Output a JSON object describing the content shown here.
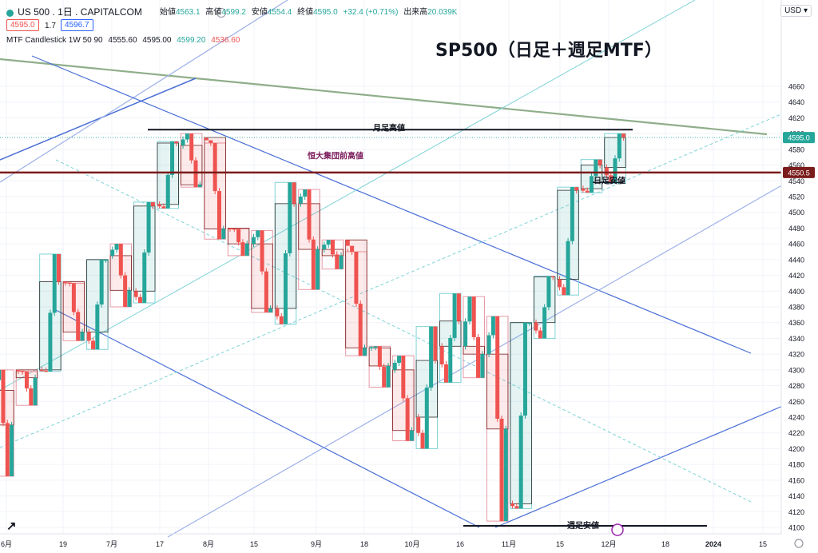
{
  "header": {
    "symbol": "US 500 . 1日 . CAPITALCOM",
    "open_label": "始値",
    "open": "4563.1",
    "high_label": "高値",
    "high": "4599.2",
    "low_label": "安値",
    "low": "4554.4",
    "close_label": "終値",
    "close": "4595.0",
    "change": "+32.4 (+0.71%)",
    "volume_label": "出来高",
    "volume": "20.039K",
    "price_box": "4595.0",
    "spread": "1.7",
    "ask_box": "4596.7"
  },
  "indicator": {
    "name": "MTF Candlestick 1W 50 90",
    "v1": "4555.60",
    "v2": "4595.00",
    "v3": "4599.20",
    "v4": "4536.60"
  },
  "currency": "USD",
  "colors": {
    "up": "#26a69a",
    "down": "#ef5350",
    "trend": "#4a6fd6",
    "resistance": "#7b1c1c"
  },
  "chart_data": {
    "type": "candlestick",
    "title": "SP500（日足＋週足MTF）",
    "ylim": [
      4090,
      4680
    ],
    "y_ticks": [
      4100,
      4120,
      4140,
      4160,
      4180,
      4200,
      4220,
      4240,
      4260,
      4280,
      4300,
      4320,
      4340,
      4360,
      4380,
      4400,
      4420,
      4440,
      4460,
      4480,
      4500,
      4520,
      4540,
      4560,
      4580,
      4600,
      4620,
      4640,
      4660
    ],
    "x_ticks": [
      "6月",
      "19",
      "7月",
      "17",
      "8月",
      "15",
      "9月",
      "18",
      "10月",
      "16",
      "11月",
      "15",
      "12月",
      "18",
      "2024",
      "15"
    ],
    "last_price": 4595.0,
    "resistance_price": 4550.5,
    "annotations": [
      {
        "text": "月足高値",
        "price": 4608
      },
      {
        "text": "恒大集団前高値",
        "price": 4572
      },
      {
        "text": "日足安値",
        "price": 4541
      },
      {
        "text": "週足安値",
        "price": 4103
      }
    ],
    "weekly": [
      {
        "o": 4274,
        "h": 4300,
        "l": 4165,
        "c": 4230
      },
      {
        "o": 4300,
        "h": 4298,
        "l": 4255,
        "c": 4290
      },
      {
        "o": 4300,
        "h": 4447,
        "l": 4298,
        "c": 4412
      },
      {
        "o": 4412,
        "h": 4410,
        "l": 4337,
        "c": 4348
      },
      {
        "o": 4348,
        "h": 4440,
        "l": 4326,
        "c": 4440
      },
      {
        "o": 4445,
        "h": 4460,
        "l": 4380,
        "c": 4401
      },
      {
        "o": 4400,
        "h": 4513,
        "l": 4385,
        "c": 4508
      },
      {
        "o": 4510,
        "h": 4590,
        "l": 4505,
        "c": 4588
      },
      {
        "o": 4585,
        "h": 4600,
        "l": 4532,
        "c": 4535
      },
      {
        "o": 4595,
        "h": 4588,
        "l": 4466,
        "c": 4479
      },
      {
        "o": 4480,
        "h": 4479,
        "l": 4445,
        "c": 4460
      },
      {
        "o": 4460,
        "h": 4477,
        "l": 4373,
        "c": 4378
      },
      {
        "o": 4378,
        "h": 4538,
        "l": 4358,
        "c": 4511
      },
      {
        "o": 4511,
        "h": 4529,
        "l": 4402,
        "c": 4453
      },
      {
        "o": 4453,
        "h": 4465,
        "l": 4428,
        "c": 4445
      },
      {
        "o": 4465,
        "h": 4450,
        "l": 4318,
        "c": 4328
      },
      {
        "o": 4328,
        "h": 4330,
        "l": 4278,
        "c": 4305
      },
      {
        "o": 4300,
        "h": 4318,
        "l": 4210,
        "c": 4223
      },
      {
        "o": 4240,
        "h": 4355,
        "l": 4200,
        "c": 4312
      },
      {
        "o": 4330,
        "h": 4397,
        "l": 4284,
        "c": 4362
      },
      {
        "o": 4330,
        "h": 4393,
        "l": 4290,
        "c": 4320
      },
      {
        "o": 4320,
        "h": 4368,
        "l": 4108,
        "c": 4225
      },
      {
        "o": 4130,
        "h": 4360,
        "l": 4124,
        "c": 4360
      },
      {
        "o": 4360,
        "h": 4419,
        "l": 4340,
        "c": 4418
      },
      {
        "o": 4415,
        "h": 4532,
        "l": 4395,
        "c": 4528
      },
      {
        "o": 4530,
        "h": 4567,
        "l": 4525,
        "c": 4560
      },
      {
        "o": 4557,
        "h": 4600,
        "l": 4537,
        "c": 4595
      }
    ]
  }
}
